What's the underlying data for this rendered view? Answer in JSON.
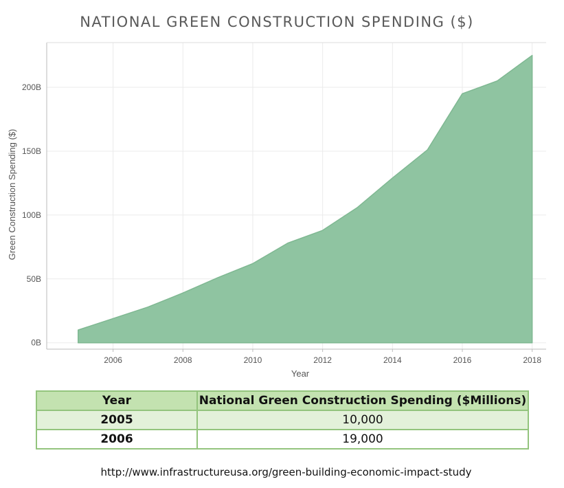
{
  "chart_data": {
    "type": "area",
    "title": "NATIONAL GREEN CONSTRUCTION SPENDING ($)",
    "xlabel": "Year",
    "ylabel": "Green Construction Spending ($)",
    "x": [
      2005,
      2006,
      2007,
      2008,
      2009,
      2010,
      2011,
      2012,
      2013,
      2014,
      2015,
      2016,
      2017,
      2018
    ],
    "values": [
      10,
      19,
      28,
      39,
      51,
      62,
      78,
      88,
      106,
      129,
      151,
      195,
      205,
      225
    ],
    "value_unit": "B",
    "xlim": [
      2004.1,
      2018.4
    ],
    "ylim": [
      -5,
      235
    ],
    "x_ticks": [
      2006,
      2008,
      2010,
      2012,
      2014,
      2016,
      2018
    ],
    "y_ticks": [
      {
        "value": 0,
        "label": "0B"
      },
      {
        "value": 50,
        "label": "50B"
      },
      {
        "value": 100,
        "label": "100B"
      },
      {
        "value": 150,
        "label": "150B"
      },
      {
        "value": 200,
        "label": "200B"
      }
    ],
    "grid": true,
    "fill_color": "#8fc4a1",
    "line_color": "#7fb892"
  },
  "table": {
    "headers": [
      "Year",
      "National Green Construction Spending ($Millions)"
    ],
    "rows": [
      {
        "year": "2005",
        "value": "10,000"
      },
      {
        "year": "2006",
        "value": "19,000"
      }
    ],
    "header_color": "#c3e2b0",
    "border_color": "#93c47d"
  },
  "source": "http://www.infrastructureusa.org/green-building-economic-impact-study"
}
